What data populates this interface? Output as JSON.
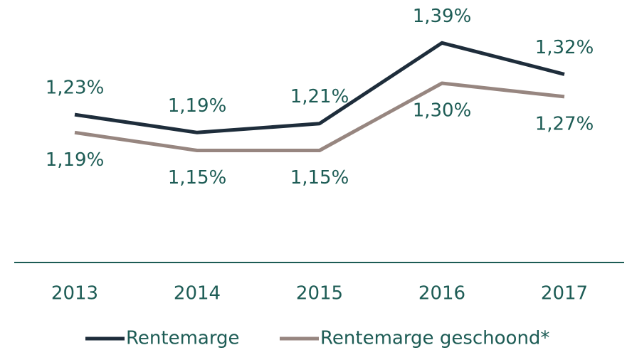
{
  "chart_data": {
    "type": "line",
    "categories": [
      "2013",
      "2014",
      "2015",
      "2016",
      "2017"
    ],
    "series": [
      {
        "name": "Rentemarge",
        "color": "#1e2d3b",
        "values": [
          1.23,
          1.19,
          1.21,
          1.39,
          1.32
        ],
        "value_labels": [
          "1,23%",
          "1,19%",
          "1,21%",
          "1,39%",
          "1,32%"
        ]
      },
      {
        "name": "Rentemarge geschoond*",
        "color": "#978680",
        "values": [
          1.19,
          1.15,
          1.15,
          1.3,
          1.27
        ],
        "value_labels": [
          "1,19%",
          "1,15%",
          "1,15%",
          "1,30%",
          "1,27%"
        ]
      }
    ],
    "ylim": [
      0.9,
      1.45
    ],
    "grid": false
  }
}
